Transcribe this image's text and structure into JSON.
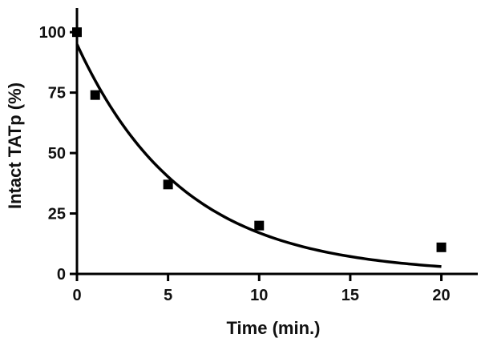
{
  "chart_data": {
    "type": "scatter",
    "xlabel": "Time (min.)",
    "ylabel": "Intact TATp (%)",
    "xlim": [
      0,
      22
    ],
    "ylim": [
      0,
      110
    ],
    "x_ticks": [
      0,
      5,
      10,
      15,
      20
    ],
    "y_ticks": [
      0,
      25,
      50,
      75,
      100
    ],
    "grid": false,
    "legend": "none",
    "series": [
      {
        "type": "scatter",
        "marker": "square",
        "color": "#000000",
        "points": [
          {
            "x": 0,
            "y": 100
          },
          {
            "x": 1,
            "y": 74
          },
          {
            "x": 5,
            "y": 37
          },
          {
            "x": 10,
            "y": 20
          },
          {
            "x": 20,
            "y": 11
          }
        ]
      },
      {
        "type": "line",
        "curve": "exponential-decay-fit",
        "color": "#000000",
        "x_range": [
          0,
          20
        ],
        "y0": 95,
        "k": 0.172
      }
    ]
  }
}
